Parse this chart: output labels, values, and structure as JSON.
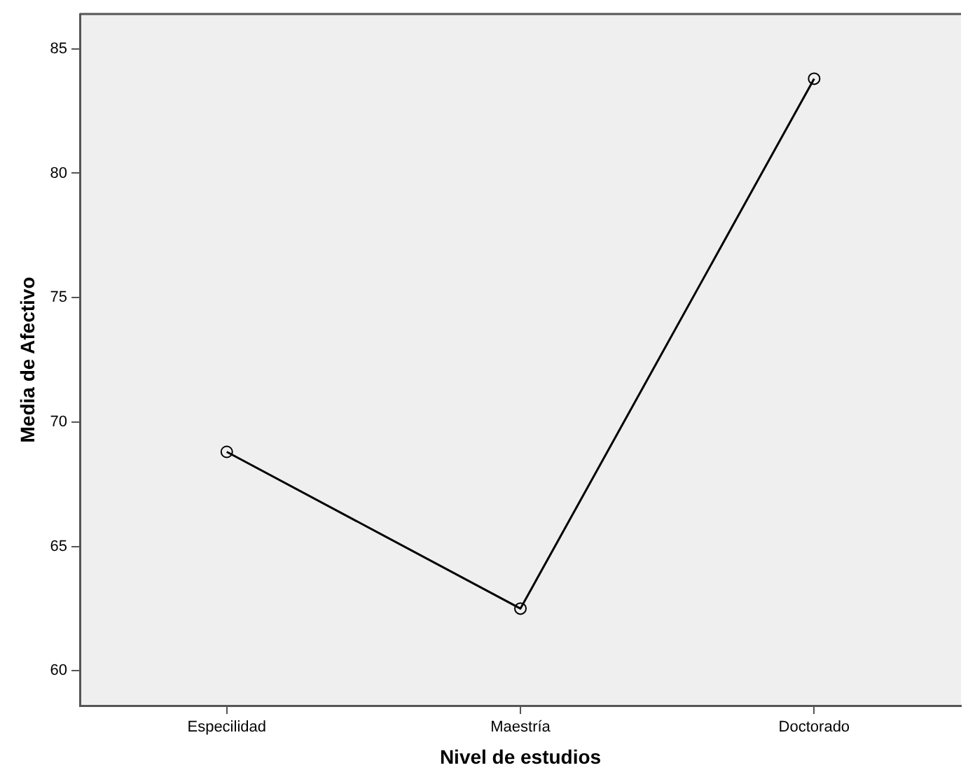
{
  "chart_data": {
    "type": "line",
    "xlabel": "Nivel de estudios",
    "ylabel": "Media de Afectivo",
    "categories": [
      "Especilidad",
      "Maestría",
      "Doctorado"
    ],
    "series": [
      {
        "color": "#000000",
        "values": [
          68.8,
          62.5,
          83.8
        ]
      }
    ],
    "ylim": [
      58.6,
      86.4
    ],
    "yticks": [
      60,
      65,
      70,
      75,
      80,
      85
    ],
    "marker": "circle",
    "grid": false,
    "legend": false
  }
}
